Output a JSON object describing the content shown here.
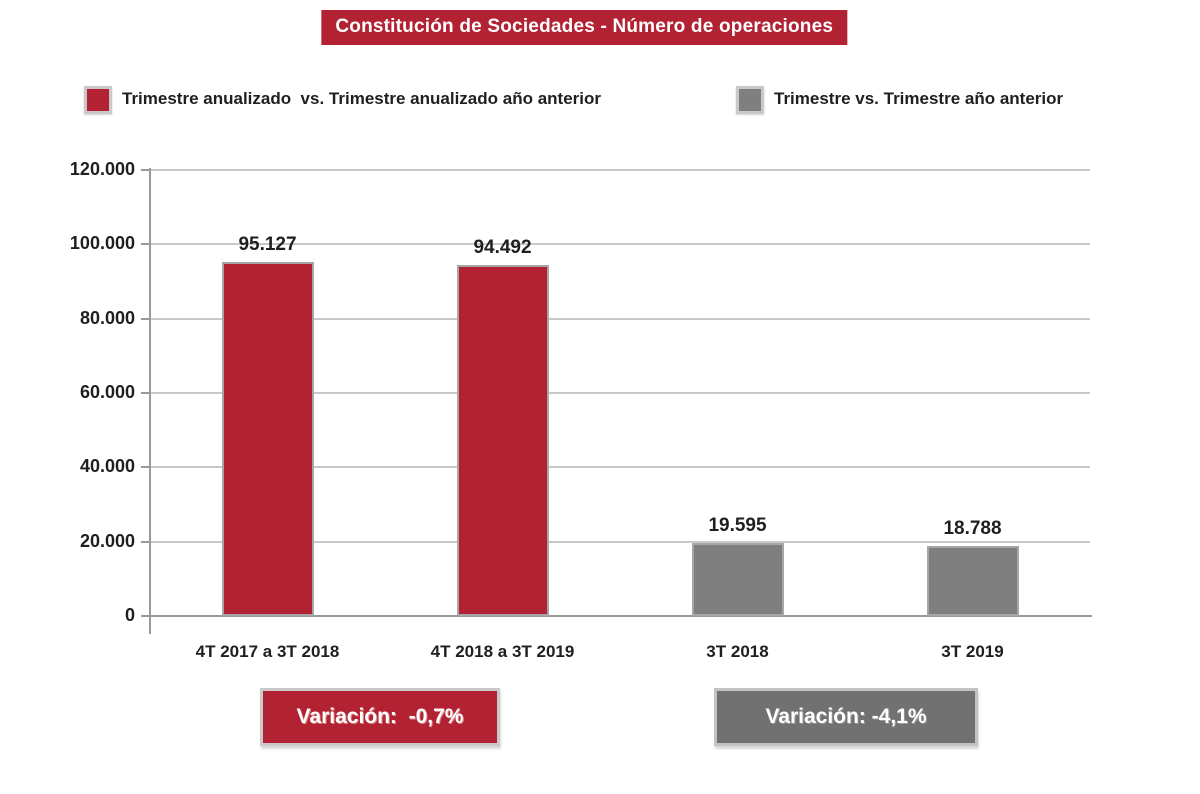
{
  "title": "Constitución de Sociedades - Número de operaciones",
  "legend": [
    {
      "label": "Trimestre anualizado  vs. Trimestre anualizado año anterior",
      "color": "#b22233"
    },
    {
      "label": "Trimestre vs. Trimestre año anterior",
      "color": "#7f7f7f"
    }
  ],
  "chart_data": {
    "type": "bar",
    "title": "Constitución de Sociedades - Número de operaciones",
    "categories": [
      "4T 2017 a 3T 2018",
      "4T 2018 a 3T 2019",
      "3T 2018",
      "3T 2019"
    ],
    "values": [
      95127,
      94492,
      19595,
      18788
    ],
    "value_labels": [
      "95.127",
      "94.492",
      "19.595",
      "18.788"
    ],
    "bar_colors": [
      "#b22233",
      "#b22233",
      "#7f7f7f",
      "#7f7f7f"
    ],
    "series_of_bars": [
      {
        "name": "Trimestre anualizado vs. Trimestre anualizado año anterior",
        "categories": [
          "4T 2017 a 3T 2018",
          "4T 2018 a 3T 2019"
        ],
        "values": [
          95127,
          94492
        ]
      },
      {
        "name": "Trimestre vs. Trimestre año anterior",
        "categories": [
          "3T 2018",
          "3T 2019"
        ],
        "values": [
          19595,
          18788
        ]
      }
    ],
    "xlabel": "",
    "ylabel": "",
    "ylim": [
      0,
      120000
    ],
    "ytick_step": 20000,
    "ytick_labels": [
      "0",
      "20.000",
      "40.000",
      "60.000",
      "80.000",
      "100.000",
      "120.000"
    ],
    "grid": true,
    "legend_position": "top"
  },
  "annotations": [
    {
      "text": "Variación:  -0,7%",
      "color": "#b22233"
    },
    {
      "text": "Variación: -4,1%",
      "color": "#717171"
    }
  ],
  "colors": {
    "accent_red": "#b22233",
    "accent_gray": "#7f7f7f",
    "grid": "#c9c9c9",
    "axis": "#9a9a9a",
    "text": "#1f1f1f",
    "badge_border": "#c9c9c9"
  }
}
